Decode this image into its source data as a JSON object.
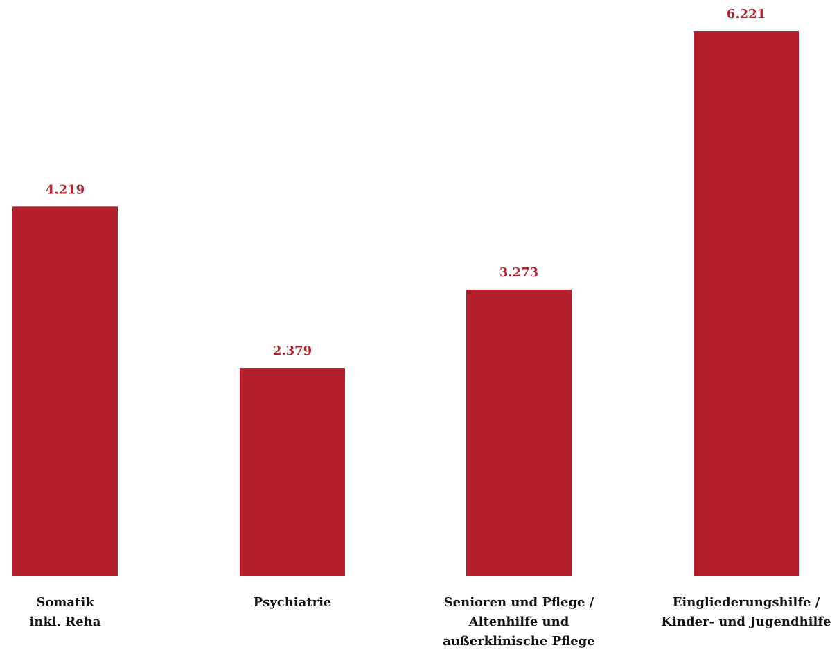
{
  "chart_data": {
    "type": "bar",
    "categories": [
      "Somatik\ninkl. Reha",
      "Psychiatrie",
      "Senioren und Pflege /\nAltenhilfe und\naußerklinische Pflege",
      "Eingliederungshilfe /\nKinder- und Jugendhilfe"
    ],
    "values": [
      4219,
      2379,
      3273,
      6221
    ],
    "value_labels": [
      "4.219",
      "2.379",
      "3.273",
      "6.221"
    ],
    "title": "",
    "xlabel": "",
    "ylabel": "",
    "ylim": [
      0,
      6221
    ],
    "grid": false,
    "bar_color": "#b31f2b",
    "value_label_color": "#b31f2b",
    "category_label_color": "#111111"
  }
}
